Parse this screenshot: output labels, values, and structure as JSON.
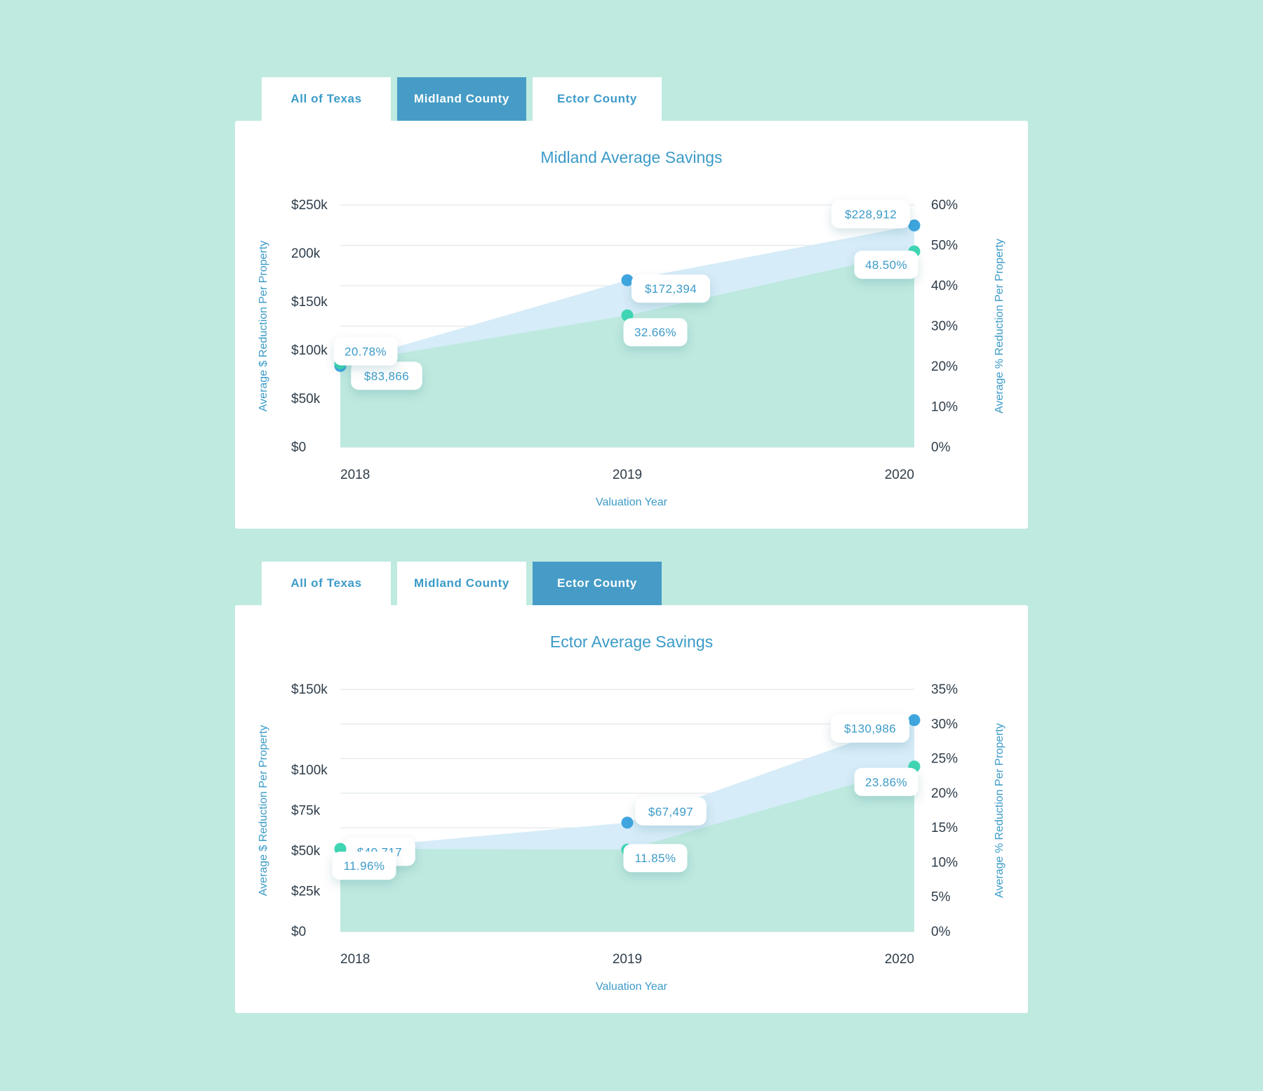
{
  "panels": [
    {
      "tabs": [
        {
          "label": "All of Texas",
          "active": false
        },
        {
          "label": "Midland County",
          "active": true
        },
        {
          "label": "Ector County",
          "active": false
        }
      ]
    },
    {
      "tabs": [
        {
          "label": "All of Texas",
          "active": false
        },
        {
          "label": "Midland County",
          "active": false
        },
        {
          "label": "Ector County",
          "active": true
        }
      ]
    }
  ],
  "colors": {
    "background": "#bfeae0",
    "accent": "#3c9bc8",
    "active_tab": "#469cc6",
    "dollar_series": "#3fa6df",
    "dollar_fill": "#d6ecf8",
    "percent_series": "#3fd6b4",
    "percent_fill": "#bde9df",
    "axis_text": "#2f3d4a"
  },
  "chart_data": [
    {
      "type": "area",
      "title": "Midland Average Savings",
      "xlabel": "Valuation Year",
      "ylabel_left": "Average $ Reduction Per Property",
      "ylabel_right": "Average % Reduction Per Property",
      "x": [
        "2018",
        "2019",
        "2020"
      ],
      "left_axis": {
        "ylim": [
          0,
          250000
        ],
        "ticks": [
          0,
          50000,
          100000,
          150000,
          200000,
          250000
        ],
        "tick_labels": [
          "$0",
          "$50k",
          "$100k",
          "$150k",
          "200k",
          "$250k"
        ]
      },
      "right_axis": {
        "ylim": [
          0,
          60
        ],
        "ticks": [
          0,
          10,
          20,
          30,
          40,
          50,
          60
        ],
        "tick_labels": [
          "0%",
          "10%",
          "20%",
          "30%",
          "40%",
          "50%",
          "60%"
        ]
      },
      "series": [
        {
          "axis": "left",
          "values": [
            83866,
            172394,
            228912
          ],
          "labels": [
            "$83,866",
            "$172,394",
            "$228,912"
          ]
        },
        {
          "axis": "right",
          "values": [
            20.78,
            32.66,
            48.5
          ],
          "labels": [
            "20.78%",
            "32.66%",
            "48.50%"
          ]
        }
      ]
    },
    {
      "type": "area",
      "title": "Ector Average Savings",
      "xlabel": "Valuation Year",
      "ylabel_left": "Average $ Reduction Per Property",
      "ylabel_right": "Average % Reduction Per Property",
      "x": [
        "2018",
        "2019",
        "2020"
      ],
      "left_axis": {
        "ylim": [
          0,
          150000
        ],
        "ticks": [
          0,
          25000,
          50000,
          75000,
          100000,
          150000
        ],
        "tick_labels": [
          "$0",
          "$25k",
          "$50k",
          "$75k",
          "$100k",
          "$150k"
        ]
      },
      "right_axis": {
        "ylim": [
          0,
          35
        ],
        "ticks": [
          0,
          5,
          10,
          15,
          20,
          25,
          30,
          35
        ],
        "tick_labels": [
          "0%",
          "5%",
          "10%",
          "15%",
          "20%",
          "25%",
          "30%",
          "35%"
        ]
      },
      "series": [
        {
          "axis": "left",
          "values": [
            40717,
            67497,
            130986
          ],
          "labels": [
            "$40,717",
            "$67,497",
            "$130,986"
          ]
        },
        {
          "axis": "right",
          "values": [
            11.96,
            11.85,
            23.86
          ],
          "labels": [
            "11.96%",
            "11.85%",
            "23.86%"
          ]
        }
      ]
    }
  ]
}
